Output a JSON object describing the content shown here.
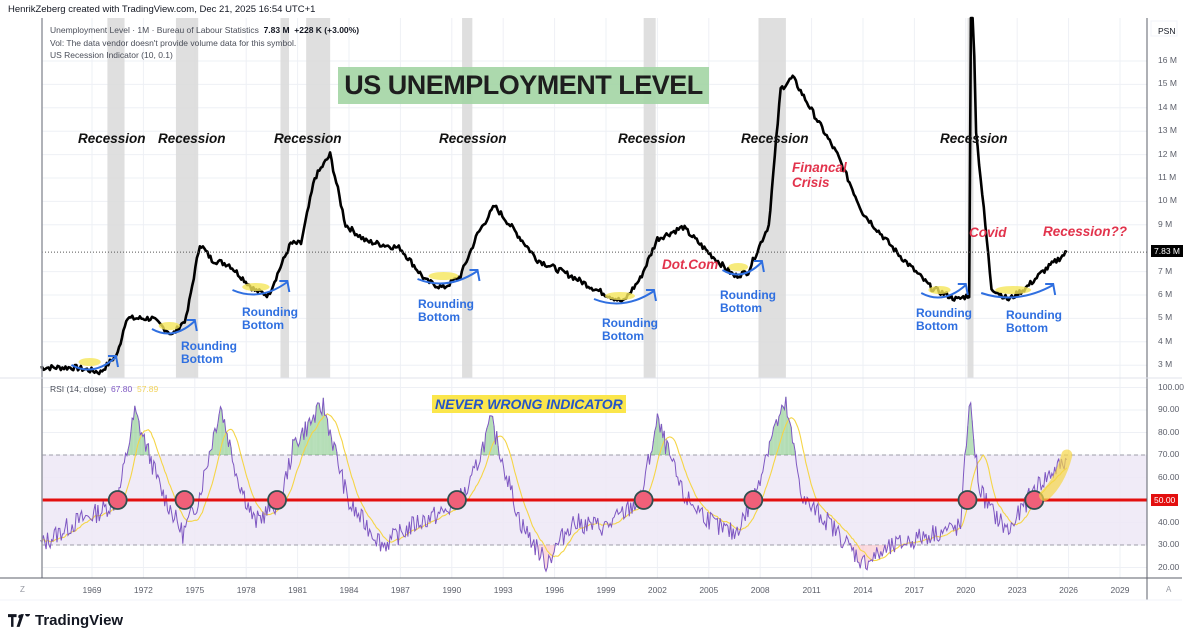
{
  "header": {
    "credit": "HenrikZeberg created with TradingView.com, Dec 21, 2025 16:54 UTC+1"
  },
  "legend": {
    "symbol_line": "Unemployment Level · 1M · Bureau of Labour Statistics",
    "last_value": "7.83 M",
    "change": "+228 K (+3.00%)",
    "volume_note": "Vol: The data vendor doesn't provide volume data for this symbol.",
    "indicator": "US Recession Indicator (10, 0.1)"
  },
  "price_axis": {
    "unit_label": "PSN",
    "ticks": [
      "16 M",
      "15 M",
      "14 M",
      "13 M",
      "12 M",
      "11 M",
      "10 M",
      "9 M",
      "7 M",
      "6 M",
      "5 M",
      "4 M",
      "3 M"
    ],
    "current_tag": "7.83 M"
  },
  "rsi_pane": {
    "label": "RSI (14, close)",
    "rsi_value": "67.80",
    "ma_value": "57.89",
    "ticks": [
      "100.00",
      "90.00",
      "80.00",
      "70.00",
      "60.00",
      "40.00",
      "30.00",
      "20.00"
    ],
    "midline_tag": "50.00",
    "annotation": "NEVER WRONG INDICATOR"
  },
  "time_axis": {
    "ticks": [
      "1969",
      "1972",
      "1975",
      "1978",
      "1981",
      "1984",
      "1987",
      "1990",
      "1993",
      "1996",
      "1999",
      "2002",
      "2005",
      "2008",
      "2011",
      "2014",
      "2017",
      "2020",
      "2023",
      "2026",
      "2029"
    ],
    "left_button": "Z",
    "right_button": "A"
  },
  "annotations": {
    "title": "US UNEMPLOYMENT LEVEL",
    "recession_labels": [
      "Recession",
      "Recession",
      "Recession",
      "Recession",
      "Recession",
      "Recession",
      "Recession"
    ],
    "event_labels": {
      "dotcom": "Dot.Com",
      "gfc_line1": "Financal",
      "gfc_line2": "Crisis",
      "covid": "Covid",
      "future": "Recession??"
    },
    "rounding_line1": "Rounding",
    "rounding_line2": "Bottom"
  },
  "branding": {
    "logo_text": "TradingView"
  },
  "colors": {
    "price_line": "#000000",
    "recession_band": "#d9d9d9",
    "rsi_line": "#7e57c2",
    "rsi_ma": "#f5d547",
    "rsi_band": "#ede7f6",
    "midline": "#e30f0f",
    "title_bg": "#a5d6a7",
    "rounding_text": "#2f6fe0",
    "event_text": "#e2334c"
  },
  "chart_data": [
    {
      "type": "line",
      "title": "US UNEMPLOYMENT LEVEL",
      "series_name": "Unemployment Level (1M, Bureau of Labour Statistics)",
      "ylabel": "PSN",
      "ylim": [
        2.5,
        16.5
      ],
      "unit": "millions",
      "x": [
        1966,
        1968,
        1969.5,
        1970.5,
        1971,
        1972.5,
        1973.7,
        1974.5,
        1975.3,
        1976,
        1977,
        1978.5,
        1979.3,
        1980,
        1980.6,
        1981.2,
        1982,
        1982.9,
        1983.8,
        1985,
        1987,
        1988.5,
        1989.5,
        1990.5,
        1991.5,
        1992.5,
        1993.5,
        1995,
        1997,
        1998.5,
        2000,
        2001,
        2002,
        2003.5,
        2005,
        2006.5,
        2007.3,
        2008.5,
        2009.2,
        2009.9,
        2011,
        2012.5,
        2014,
        2016,
        2018,
        2019.5,
        2020.2,
        2020.3,
        2020.6,
        2021.5,
        2022.5,
        2023.5,
        2024.5,
        2025.9
      ],
      "values": [
        2.9,
        2.9,
        2.7,
        3.5,
        5.0,
        5.0,
        4.3,
        5.0,
        8.2,
        7.5,
        7.3,
        6.2,
        6.0,
        7.2,
        8.2,
        8.2,
        11.0,
        12.0,
        9.0,
        8.3,
        8.0,
        6.6,
        6.3,
        6.8,
        8.6,
        9.8,
        8.9,
        7.5,
        6.8,
        6.2,
        5.7,
        6.7,
        8.4,
        8.9,
        7.8,
        6.8,
        7.0,
        9.0,
        14.8,
        15.3,
        13.9,
        12.0,
        9.5,
        7.8,
        6.3,
        5.8,
        6.0,
        23.0,
        13.0,
        6.3,
        5.8,
        6.3,
        7.0,
        7.83
      ]
    },
    {
      "type": "line",
      "title": "RSI (14, close)",
      "ylim": [
        15,
        100
      ],
      "bands": {
        "upper": 70,
        "middle": 50,
        "lower": 30
      },
      "series": [
        {
          "name": "RSI",
          "last": 67.8
        },
        {
          "name": "RSI-based MA",
          "last": 57.89
        }
      ],
      "x": [
        1966,
        1968,
        1969.5,
        1970.5,
        1971.5,
        1973,
        1974.3,
        1975.2,
        1976.5,
        1977.5,
        1978.5,
        1980,
        1980.8,
        1982.5,
        1984,
        1986,
        1988,
        1989.7,
        1991,
        1992.3,
        1994,
        1995.5,
        1997,
        1999,
        2001,
        2002,
        2003.5,
        2005.5,
        2006.5,
        2007.6,
        2008.7,
        2009.5,
        2010.5,
        2012,
        2014,
        2016,
        2018,
        2019.7,
        2020.2,
        2020.8,
        2021.5,
        2022.5,
        2024,
        2025.9
      ],
      "values": [
        30,
        40,
        45,
        50,
        89,
        55,
        35,
        50,
        92,
        60,
        40,
        50,
        75,
        92,
        48,
        30,
        40,
        45,
        55,
        85,
        40,
        22,
        40,
        38,
        50,
        85,
        52,
        38,
        35,
        50,
        80,
        92,
        50,
        40,
        22,
        30,
        35,
        38,
        95,
        55,
        45,
        36,
        55,
        68
      ],
      "crossover_markers_x": [
        1970.5,
        1974.4,
        1979.8,
        1990.3,
        2001.2,
        2007.6,
        2020.1,
        2024.0
      ],
      "annotation": "NEVER WRONG INDICATOR"
    }
  ],
  "recession_periods": [
    [
      1969.9,
      1970.9
    ],
    [
      1973.9,
      1975.2
    ],
    [
      1980.0,
      1980.5
    ],
    [
      1981.5,
      1982.9
    ],
    [
      1990.6,
      1991.2
    ],
    [
      2001.2,
      2001.9
    ],
    [
      2007.9,
      2009.5
    ],
    [
      2020.1,
      2020.4
    ]
  ]
}
